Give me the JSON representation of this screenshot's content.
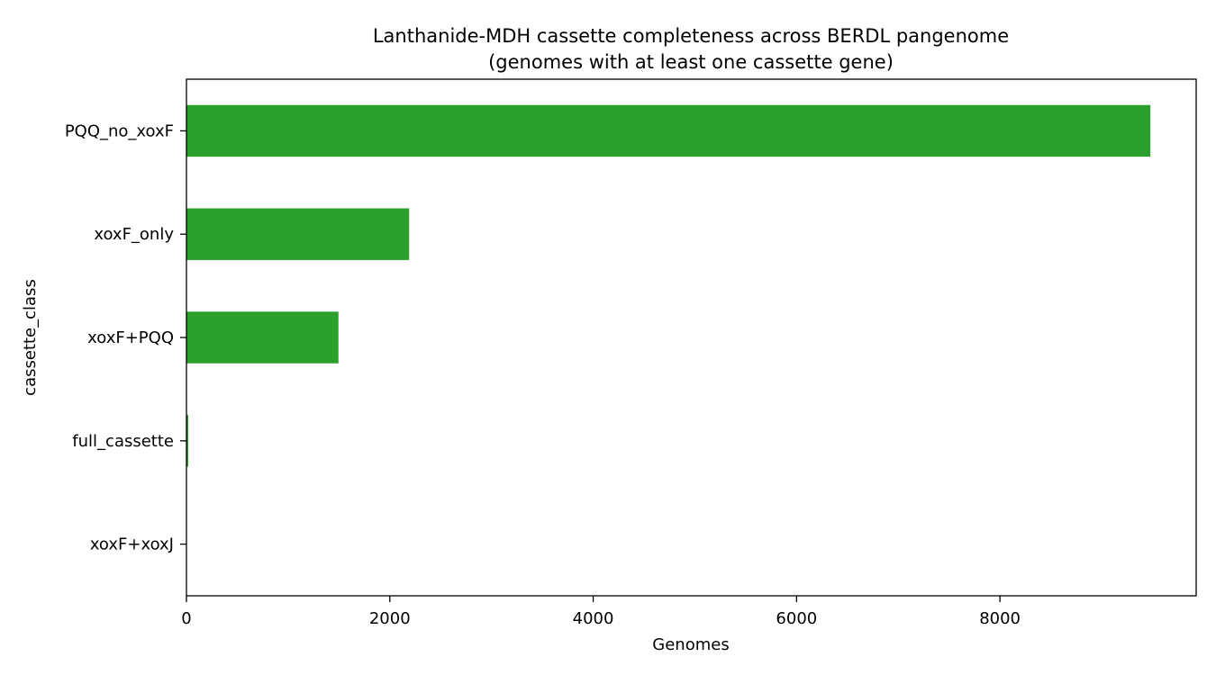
{
  "chart_data": {
    "type": "bar",
    "orientation": "horizontal",
    "title": "Lanthanide-MDH cassette completeness across BERDL pangenome",
    "subtitle": "(genomes with at least one cassette gene)",
    "xlabel": "Genomes",
    "ylabel": "cassette_class",
    "categories": [
      "PQQ_no_xoxF",
      "xoxF_only",
      "xoxF+PQQ",
      "full_cassette",
      "xoxF+xoxJ"
    ],
    "values": [
      9480,
      2190,
      1495,
      18,
      2
    ],
    "xlim": [
      0,
      9930
    ],
    "xticks": [
      0,
      2000,
      4000,
      6000,
      8000
    ],
    "xtick_labels": [
      "0",
      "2000",
      "4000",
      "6000",
      "8000"
    ],
    "bar_color": "#2ca02c",
    "grid": false,
    "legend": "none"
  }
}
